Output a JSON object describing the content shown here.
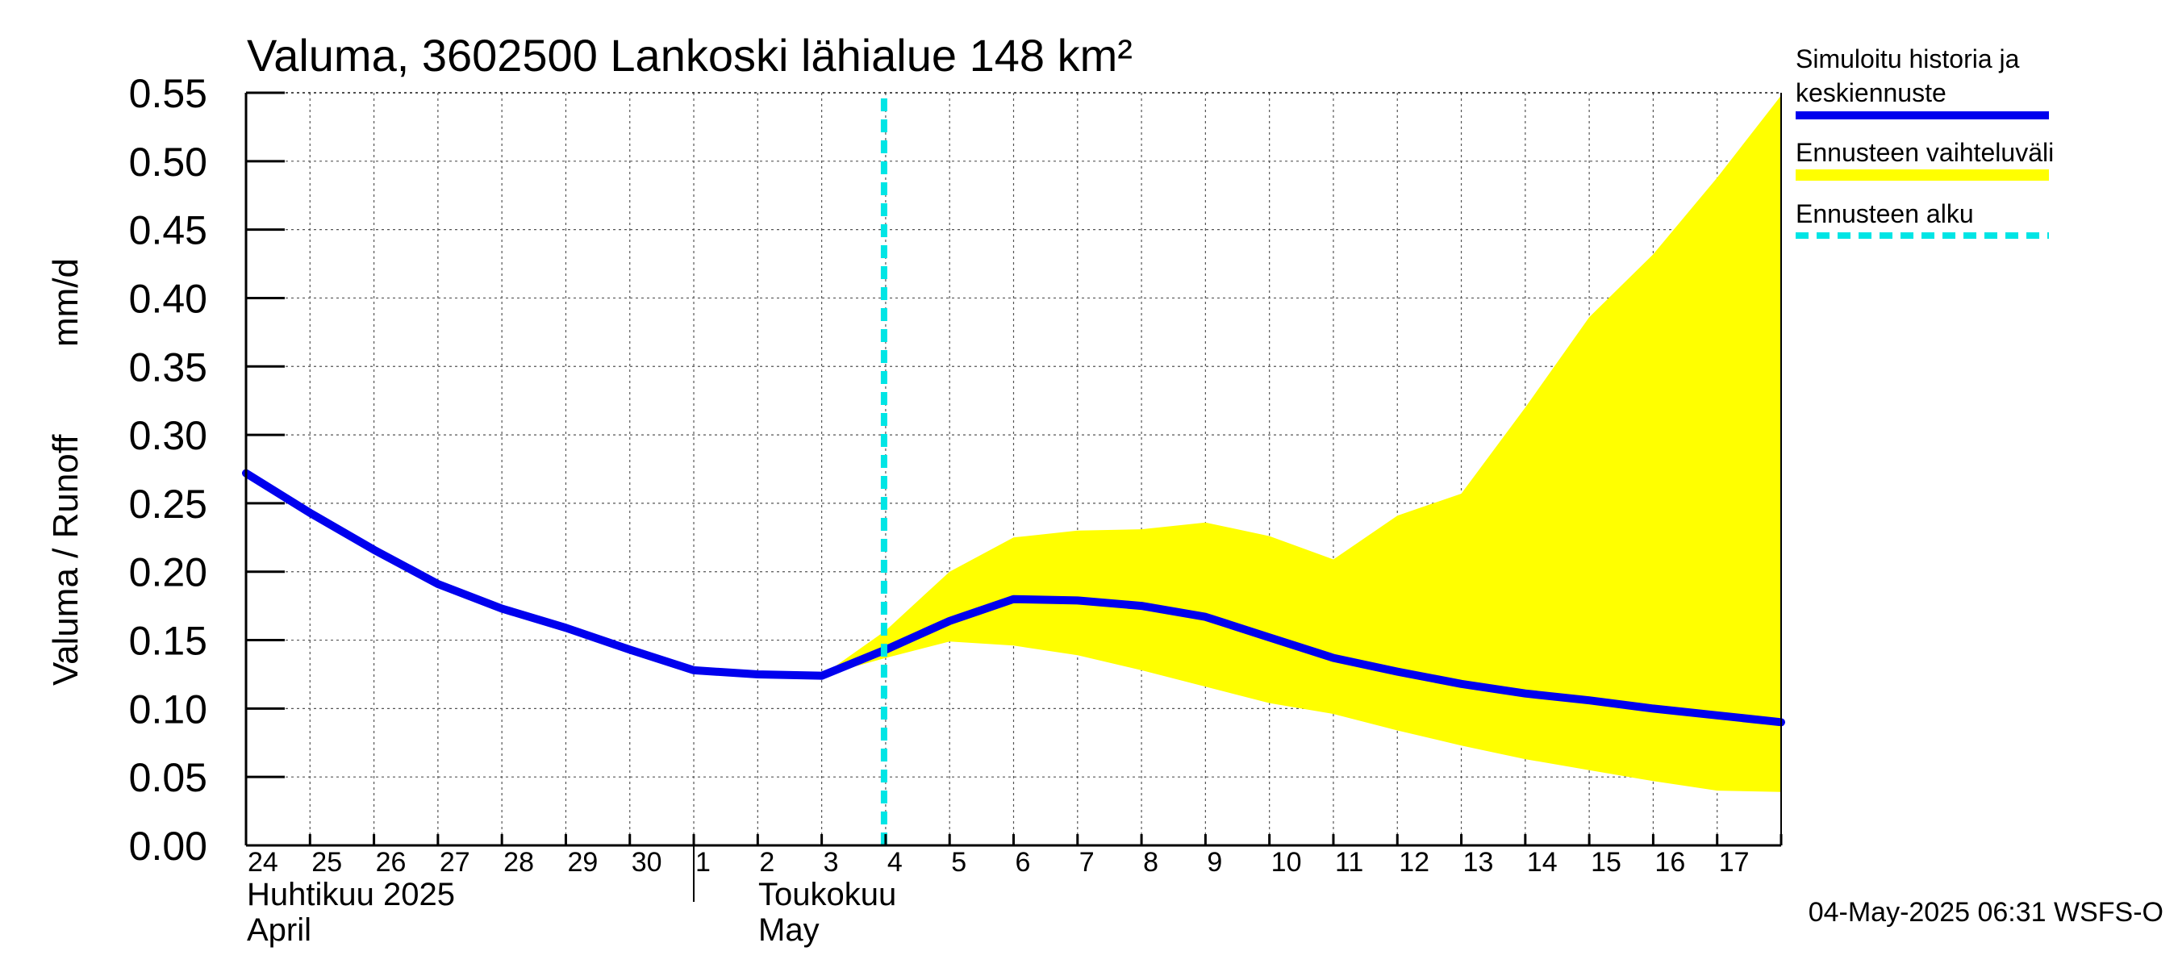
{
  "chart_data": {
    "type": "line",
    "title": "Valuma, 3602500 Lankoski lähialue 148 km²",
    "ylabel_left": "Valuma / Runoff",
    "ylabel_right": "mm/d",
    "ylim": [
      0,
      0.55
    ],
    "yticks": [
      "0.00",
      "0.05",
      "0.10",
      "0.15",
      "0.20",
      "0.25",
      "0.30",
      "0.35",
      "0.40",
      "0.45",
      "0.50",
      "0.55"
    ],
    "xlim": [
      0,
      24
    ],
    "x_tick_labels": [
      "24",
      "25",
      "26",
      "27",
      "28",
      "29",
      "30",
      "1",
      "2",
      "3",
      "4",
      "5",
      "6",
      "7",
      "8",
      "9",
      "10",
      "11",
      "12",
      "13",
      "14",
      "15",
      "16",
      "17"
    ],
    "months": [
      {
        "fi": "Huhtikuu  2025",
        "en": "April"
      },
      {
        "fi": "Toukokuu",
        "en": "May"
      }
    ],
    "grid": true,
    "series": [
      {
        "name": "Simuloitu historia ja keskiennuste",
        "color": "#0000ee",
        "x": [
          0,
          1,
          2,
          3,
          4,
          5,
          6,
          7,
          8,
          9,
          10,
          11,
          12,
          13,
          14,
          15,
          16,
          17,
          18,
          19,
          20,
          21,
          22,
          23,
          24
        ],
        "values": [
          0.272,
          0.243,
          0.216,
          0.191,
          0.173,
          0.159,
          0.143,
          0.128,
          0.125,
          0.124,
          0.143,
          0.164,
          0.18,
          0.179,
          0.175,
          0.167,
          0.152,
          0.137,
          0.127,
          0.118,
          0.111,
          0.106,
          0.1,
          0.095,
          0.09
        ]
      }
    ],
    "band": {
      "name": "Ennusteen vaihteluväli",
      "color": "#ffff00",
      "x": [
        9,
        10,
        11,
        12,
        13,
        14,
        15,
        16,
        17,
        18,
        19,
        20,
        21,
        22,
        23,
        24
      ],
      "upper": [
        0.124,
        0.157,
        0.2,
        0.225,
        0.23,
        0.231,
        0.236,
        0.226,
        0.209,
        0.241,
        0.257,
        0.32,
        0.386,
        0.432,
        0.488,
        0.548
      ],
      "lower": [
        0.124,
        0.137,
        0.149,
        0.146,
        0.139,
        0.128,
        0.116,
        0.104,
        0.096,
        0.084,
        0.073,
        0.063,
        0.055,
        0.047,
        0.04,
        0.039
      ]
    },
    "forecast_start": {
      "name": "Ennusteen alku",
      "x": 10,
      "color": "#00e5e5"
    },
    "legend": [
      {
        "label_lines": [
          "Simuloitu historia ja",
          "keskiennuste"
        ],
        "color": "#0000ee",
        "style": "line"
      },
      {
        "label_lines": [
          "Ennusteen vaihteluväli"
        ],
        "color": "#ffff00",
        "style": "band"
      },
      {
        "label_lines": [
          "Ennusteen alku"
        ],
        "color": "#00e5e5",
        "style": "dashed"
      }
    ],
    "footer": "04-May-2025 06:31 WSFS-O"
  }
}
